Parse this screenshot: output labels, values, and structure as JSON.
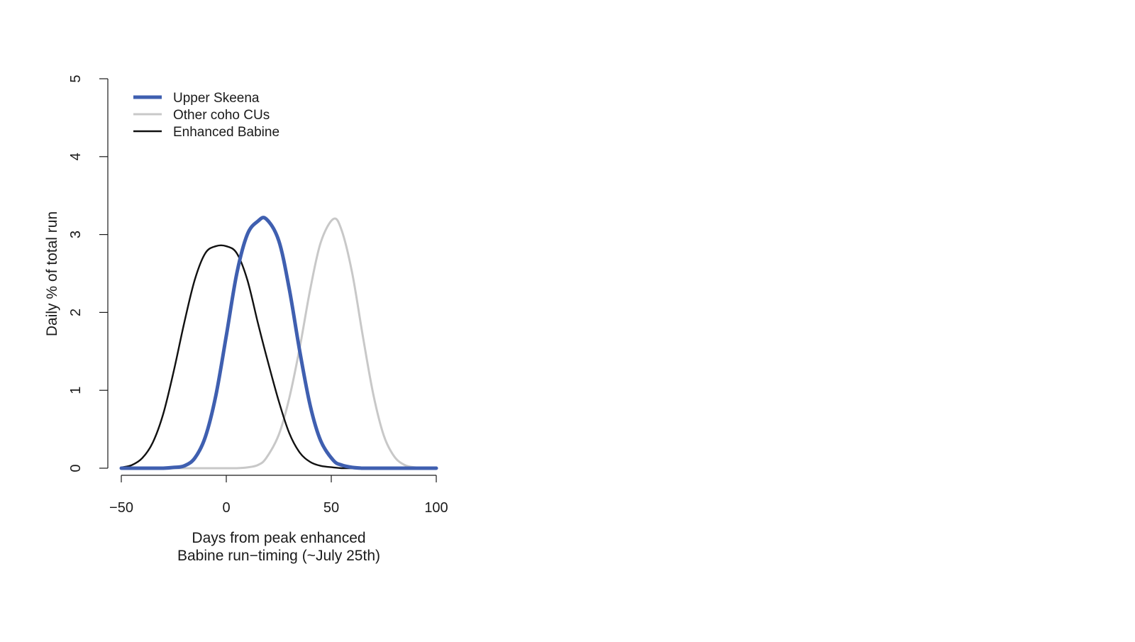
{
  "chart_data": {
    "type": "line",
    "title": "",
    "xlabel_lines": [
      "Days from peak enhanced",
      "Babine run−timing (~July 25th)"
    ],
    "ylabel": "Daily % of total run",
    "xlim": [
      -50,
      100
    ],
    "ylim": [
      0,
      5
    ],
    "x_ticks": [
      -50,
      0,
      50,
      100
    ],
    "x_tick_labels": [
      "−50",
      "0",
      "50",
      "100"
    ],
    "y_ticks": [
      0,
      1,
      2,
      3,
      4,
      5
    ],
    "y_tick_labels": [
      "0",
      "1",
      "2",
      "3",
      "4",
      "5"
    ],
    "grid": false,
    "legend_position": "top-left",
    "x": [
      -50,
      -45,
      -40,
      -35,
      -30,
      -25,
      -20,
      -15,
      -10,
      -5,
      0,
      5,
      10,
      15,
      19,
      25,
      30,
      35,
      40,
      45,
      51,
      55,
      60,
      65,
      70,
      75,
      80,
      85,
      90,
      95,
      100
    ],
    "series": [
      {
        "name": "Upper Skeena",
        "color": "#3f5fb0",
        "line_weight": "thick",
        "values": [
          0.0,
          0.0,
          0.0,
          0.0,
          0.0,
          0.01,
          0.03,
          0.13,
          0.4,
          0.93,
          1.7,
          2.5,
          3.0,
          3.17,
          3.2,
          2.92,
          2.3,
          1.5,
          0.8,
          0.35,
          0.1,
          0.04,
          0.01,
          0.0,
          0.0,
          0.0,
          0.0,
          0.0,
          0.0,
          0.0,
          0.0
        ]
      },
      {
        "name": "Other coho CUs",
        "color": "#c8c8c8",
        "line_weight": "medium",
        "values": [
          0.0,
          0.0,
          0.0,
          0.0,
          0.0,
          0.0,
          0.0,
          0.0,
          0.0,
          0.0,
          0.0,
          0.0,
          0.01,
          0.04,
          0.13,
          0.43,
          0.9,
          1.55,
          2.3,
          2.9,
          3.2,
          3.05,
          2.5,
          1.7,
          0.95,
          0.42,
          0.15,
          0.04,
          0.01,
          0.0,
          0.0
        ]
      },
      {
        "name": "Enhanced Babine",
        "color": "#111111",
        "line_weight": "normal",
        "values": [
          0.01,
          0.04,
          0.13,
          0.33,
          0.7,
          1.25,
          1.87,
          2.42,
          2.76,
          2.85,
          2.85,
          2.76,
          2.42,
          1.87,
          1.45,
          0.86,
          0.45,
          0.2,
          0.08,
          0.03,
          0.01,
          0.0,
          0.0,
          0.0,
          0.0,
          0.0,
          0.0,
          0.0,
          0.0,
          0.0,
          0.0
        ]
      }
    ]
  }
}
